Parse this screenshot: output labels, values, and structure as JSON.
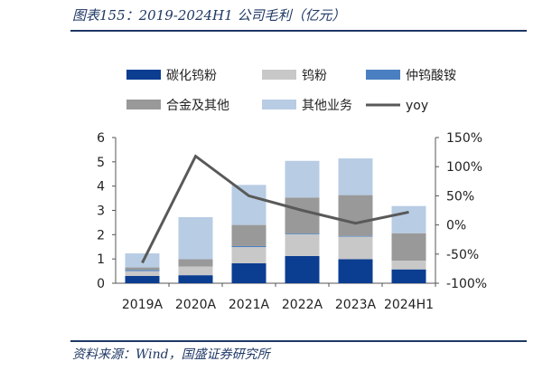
{
  "title": "图表155：2019-2024H1 公司毛利（亿元）",
  "source": "资料来源：Wind，国盛证券研究所",
  "chart_data": {
    "type": "bar",
    "stacked": true,
    "categories": [
      "2019A",
      "2020A",
      "2021A",
      "2022A",
      "2023A",
      "2024H1"
    ],
    "series": [
      {
        "name": "碳化钨粉",
        "color": "#0b3d91",
        "values": [
          0.3,
          0.33,
          0.82,
          1.12,
          0.99,
          0.57
        ]
      },
      {
        "name": "钨粉",
        "color": "#c8c8c8",
        "values": [
          0.2,
          0.36,
          0.67,
          0.9,
          0.93,
          0.36
        ]
      },
      {
        "name": "仲钨酸铵",
        "color": "#4a7fc1",
        "values": [
          0.05,
          0.0,
          0.04,
          0.03,
          0.03,
          0.0
        ]
      },
      {
        "name": "合金及其他",
        "color": "#999999",
        "values": [
          0.1,
          0.3,
          0.87,
          1.48,
          1.68,
          1.13
        ]
      },
      {
        "name": "其他业务",
        "color": "#b8cce4",
        "values": [
          0.58,
          1.73,
          1.65,
          1.51,
          1.51,
          1.12
        ]
      }
    ],
    "line": {
      "name": "yoy",
      "color": "#595959",
      "values": [
        -65,
        118,
        50,
        25,
        3,
        22
      ]
    },
    "y_left": {
      "min": 0,
      "max": 6,
      "ticks": [
        "0",
        "1",
        "2",
        "3",
        "4",
        "5",
        "6"
      ]
    },
    "y_right": {
      "min": -100,
      "max": 150,
      "ticks": [
        "-100%",
        "-50%",
        "0%",
        "50%",
        "100%",
        "150%"
      ]
    },
    "legend_position": "top",
    "grid": false
  }
}
